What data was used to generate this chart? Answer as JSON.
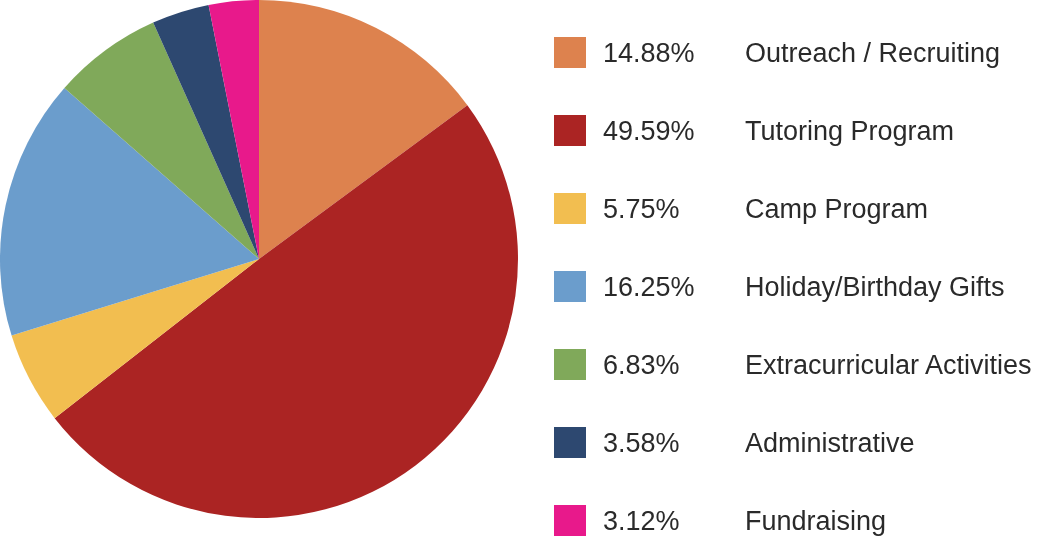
{
  "chart_data": {
    "type": "pie",
    "categories": [
      "Outreach / Recruiting",
      "Tutoring Program",
      "Camp Program",
      "Holiday/Birthday Gifts",
      "Extracurricular Activities",
      "Administrative",
      "Fundraising"
    ],
    "values": [
      14.88,
      49.59,
      5.75,
      16.25,
      6.83,
      3.58,
      3.12
    ],
    "value_labels": [
      "14.88%",
      "49.59%",
      "5.75%",
      "16.25%",
      "6.83%",
      "3.58%",
      "3.12%"
    ],
    "colors": [
      "#dd824e",
      "#ab2423",
      "#f2be50",
      "#6b9dcc",
      "#80a95a",
      "#2d4870",
      "#e8198b"
    ],
    "legend": "right"
  }
}
